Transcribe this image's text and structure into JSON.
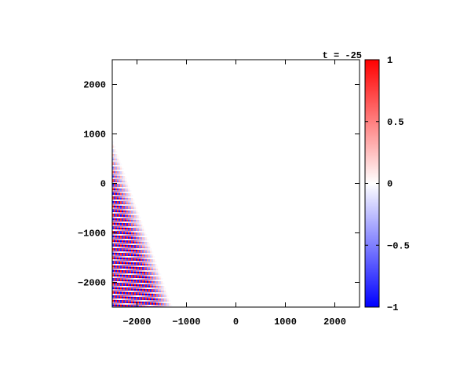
{
  "chart_data": {
    "type": "heatmap",
    "title": "t = -25",
    "xlim": [
      -2500,
      2500
    ],
    "ylim": [
      -2500,
      2500
    ],
    "x_ticks": [
      -2000,
      -1000,
      0,
      1000,
      2000
    ],
    "x_tick_labels": [
      "−2000",
      "−1000",
      "0",
      "1000",
      "2000"
    ],
    "y_ticks": [
      -2000,
      -1000,
      0,
      1000,
      2000
    ],
    "y_tick_labels": [
      "−2000",
      "−1000",
      "0",
      "1000",
      "2000"
    ],
    "colorbar": {
      "range": [
        -1,
        1
      ],
      "ticks": [
        -1,
        -0.5,
        0,
        0.5,
        1
      ],
      "tick_labels": [
        "−1",
        "−0.5",
        "0",
        "0.5",
        "1"
      ],
      "low_color": "#0000ff",
      "mid_color": "#ffffff",
      "high_color": "#ff0000"
    },
    "field": {
      "description": "oblique plane-wave packet amplitude",
      "wave_period_x": 62,
      "slope_dy_per_dx": -2.8,
      "front_intercept_at_xmin": 900,
      "decay_length": 900
    },
    "grid": false,
    "legend": "none"
  }
}
